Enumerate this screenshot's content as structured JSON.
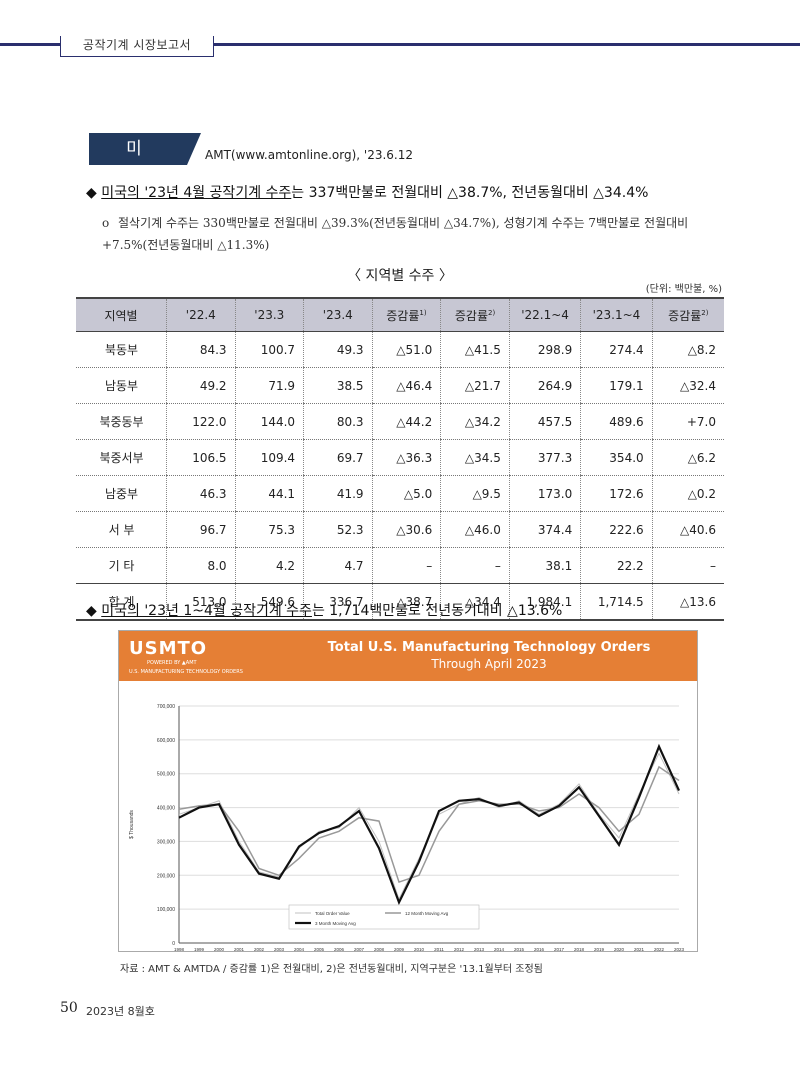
{
  "header": {
    "tab_label": "공작기계 시장보고서"
  },
  "section": {
    "country": "미 국",
    "source": "AMT(www.amtonline.org),  '23.6.12"
  },
  "bullet1": {
    "marker": "◆",
    "underlined": "미국의 '23년 4월 공작기계 수주",
    "rest": "는 337백만불로 전월대비 △38.7%, 전년동월대비 △34.4%"
  },
  "subpoint": {
    "marker": "o",
    "text": "절삭기계 수주는 330백만불로 전월대비 △39.3%(전년동월대비 △34.7%), 성형기계 수주는 7백만불로 전월대비 +7.5%(전년동월대비 △11.3%)"
  },
  "table": {
    "title": "〈 지역별 수주 〉",
    "unit": "(단위: 백만불, %)",
    "headers": [
      "지역별",
      "'22.4",
      "'23.3",
      "'23.4",
      "증감률",
      "증감률",
      "'22.1~4",
      "'23.1~4",
      "증감률"
    ],
    "header_sups": [
      "",
      "",
      "",
      "",
      "1)",
      "2)",
      "",
      "",
      "2)"
    ],
    "rows": [
      [
        "북동부",
        "84.3",
        "100.7",
        "49.3",
        "△51.0",
        "△41.5",
        "298.9",
        "274.4",
        "△8.2"
      ],
      [
        "남동부",
        "49.2",
        "71.9",
        "38.5",
        "△46.4",
        "△21.7",
        "264.9",
        "179.1",
        "△32.4"
      ],
      [
        "북중동부",
        "122.0",
        "144.0",
        "80.3",
        "△44.2",
        "△34.2",
        "457.5",
        "489.6",
        "+7.0"
      ],
      [
        "북중서부",
        "106.5",
        "109.4",
        "69.7",
        "△36.3",
        "△34.5",
        "377.3",
        "354.0",
        "△6.2"
      ],
      [
        "남중부",
        "46.3",
        "44.1",
        "41.9",
        "△5.0",
        "△9.5",
        "173.0",
        "172.6",
        "△0.2"
      ],
      [
        "서 부",
        "96.7",
        "75.3",
        "52.3",
        "△30.6",
        "△46.0",
        "374.4",
        "222.6",
        "△40.6"
      ],
      [
        "기 타",
        "8.0",
        "4.2",
        "4.7",
        "–",
        "–",
        "38.1",
        "22.2",
        "–"
      ],
      [
        "합 계",
        "513.0",
        "549.6",
        "336.7",
        "△38.7",
        "△34.4",
        "1,984.1",
        "1,714.5",
        "△13.6"
      ]
    ]
  },
  "bullet2": {
    "marker": "◆",
    "underlined": "미국의 '23년 1~4월 공작기계 수주",
    "rest": "는 1,714백만불로 전년동기대비 △13.6%"
  },
  "chart_banner": {
    "logo": "USMTO",
    "powered": "POWERED BY ▲AMT",
    "logo_sub": "U.S. MANUFACTURING TECHNOLOGY ORDERS",
    "title": "Total U.S. Manufacturing Technology Orders",
    "subtitle": "Through April 2023"
  },
  "chart_data": {
    "type": "line",
    "title": "Total U.S. Manufacturing Technology Orders",
    "subtitle": "Through April 2023",
    "ylabel": "$ Thousands",
    "xlabel": "",
    "ylim": [
      0,
      700000
    ],
    "yticks": [
      "0",
      "100,000",
      "200,000",
      "300,000",
      "400,000",
      "500,000",
      "600,000",
      "700,000"
    ],
    "x": [
      "1998",
      "1999",
      "2000",
      "2001",
      "2002",
      "2003",
      "2004",
      "2005",
      "2006",
      "2007",
      "2008",
      "2009",
      "2010",
      "2011",
      "2012",
      "2013",
      "2014",
      "2015",
      "2016",
      "2017",
      "2018",
      "2019",
      "2020",
      "2021",
      "2022",
      "2023"
    ],
    "grid": true,
    "legend_position": "bottom-left",
    "series": [
      {
        "name": "Total Order Value",
        "color": "#c0c0c0",
        "values": [
          380000,
          400000,
          420000,
          300000,
          210000,
          195000,
          280000,
          330000,
          340000,
          400000,
          300000,
          130000,
          250000,
          380000,
          410000,
          430000,
          400000,
          420000,
          380000,
          410000,
          470000,
          380000,
          310000,
          440000,
          560000,
          440000
        ]
      },
      {
        "name": "12 Month Moving Avg",
        "color": "#999999",
        "values": [
          395000,
          405000,
          410000,
          330000,
          220000,
          200000,
          250000,
          310000,
          330000,
          370000,
          360000,
          180000,
          200000,
          330000,
          410000,
          420000,
          410000,
          410000,
          390000,
          400000,
          440000,
          400000,
          330000,
          380000,
          520000,
          480000
        ]
      },
      {
        "name": "3 Month Moving Avg",
        "color": "#111111",
        "values": [
          370000,
          400000,
          410000,
          290000,
          205000,
          190000,
          285000,
          325000,
          345000,
          390000,
          280000,
          120000,
          240000,
          390000,
          420000,
          425000,
          405000,
          415000,
          375000,
          405000,
          460000,
          375000,
          290000,
          430000,
          580000,
          450000
        ]
      }
    ]
  },
  "caption": "자료 : AMT & AMTDA / 증감률 1)은 전월대비, 2)은 전년동월대비, 지역구분은 '13.1월부터 조정됨",
  "footer": {
    "page": "50",
    "issue": "2023년 8월호"
  }
}
